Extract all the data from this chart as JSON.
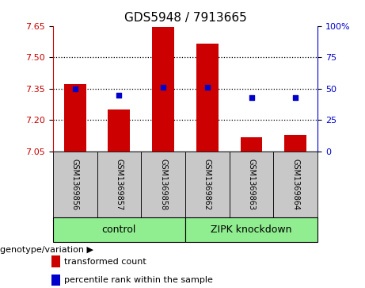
{
  "title": "GDS5948 / 7913665",
  "categories": [
    "GSM1369856",
    "GSM1369857",
    "GSM1369858",
    "GSM1369862",
    "GSM1369863",
    "GSM1369864"
  ],
  "bar_values": [
    7.37,
    7.25,
    7.645,
    7.565,
    7.115,
    7.13
  ],
  "percentile_values": [
    50,
    45,
    51,
    51,
    43,
    43
  ],
  "ylim_left": [
    7.05,
    7.65
  ],
  "ylim_right": [
    0,
    100
  ],
  "yticks_left": [
    7.05,
    7.2,
    7.35,
    7.5,
    7.65
  ],
  "yticks_right": [
    0,
    25,
    50,
    75,
    100
  ],
  "bar_color": "#cc0000",
  "dot_color": "#0000cc",
  "bar_width": 0.5,
  "group1_label": "control",
  "group2_label": "ZIPK knockdown",
  "group1_indices": [
    0,
    1,
    2
  ],
  "group2_indices": [
    3,
    4,
    5
  ],
  "group_label_prefix": "genotype/variation",
  "legend_bar_label": "transformed count",
  "legend_dot_label": "percentile rank within the sample",
  "hgrid_color": "black",
  "background_plot": "#ffffff",
  "background_label": "#c8c8c8",
  "background_group": "#90ee90",
  "ylabel_left_color": "#cc0000",
  "ylabel_right_color": "#0000cc",
  "title_fontsize": 11
}
